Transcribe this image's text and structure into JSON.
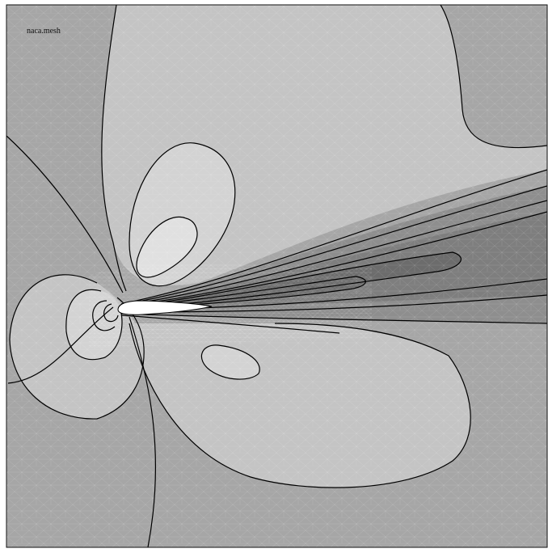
{
  "title": "naca.mesh",
  "colors": {
    "background": "#ffffff",
    "frame": "#111111",
    "field_base": "#a6a6a6",
    "region_light": "#c4c4c4",
    "region_lighter": "#d3d3d3",
    "region_lightest": "#e0e0e0",
    "wake_dark_1": "#8e8e8e",
    "wake_dark_2": "#7e7e7e",
    "wake_dark_3": "#6c6c6c",
    "contour_line": "#000000",
    "mesh_line": "#ffffff",
    "airfoil_fill": "#ffffff"
  }
}
